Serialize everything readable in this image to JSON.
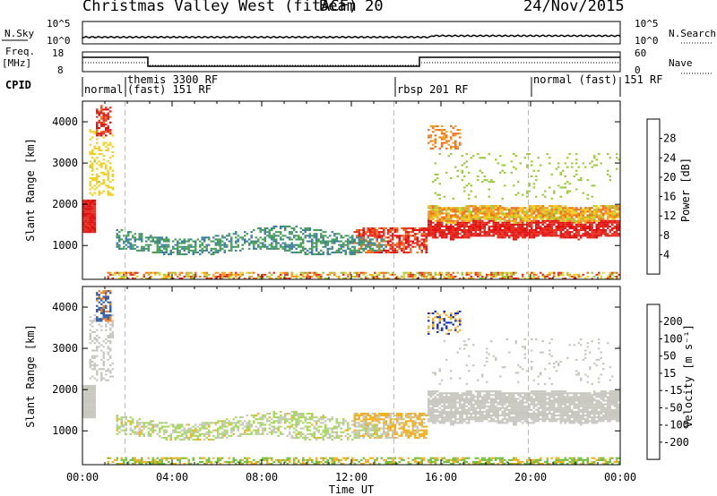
{
  "header": {
    "title": "Christmas Valley West (fitACF)",
    "beam": "Beam 20",
    "date": "24/Nov/2015"
  },
  "top_panel": {
    "left_label": "N.Sky",
    "right_label": "N.Search",
    "left_ticks": [
      "10^5",
      "10^0"
    ],
    "right_ticks": [
      "10^5",
      "10^0"
    ]
  },
  "freq_panel": {
    "left_label_line1": "Freq.",
    "left_label_line2": "[MHz]",
    "left_ticks": [
      "18",
      "8"
    ],
    "right_label": "Nave",
    "right_ticks": [
      "60",
      "0"
    ]
  },
  "cpid": {
    "label": "CPID",
    "segments": [
      "normal",
      "themis 3300 RF",
      "(fast) 151 RF",
      "rbsp 201 RF",
      "normal (fast) 151 RF"
    ]
  },
  "chart_data": [
    {
      "type": "heatmap",
      "name": "power",
      "ylabel": "Slant Range [km]",
      "yticks": [
        1000,
        2000,
        3000,
        4000
      ],
      "ylim": [
        180,
        4500
      ],
      "xlim_hours": [
        0,
        24
      ],
      "colorbar": {
        "label": "Power [dB]",
        "ticks": [
          "4",
          "8",
          "12",
          "16",
          "20",
          "24",
          "28"
        ],
        "colors": [
          "#1010e0",
          "#2a4fb0",
          "#3f7f9f",
          "#4aa05a",
          "#9ccc3a",
          "#f0d020",
          "#f4a020",
          "#f07020",
          "#e83020",
          "#e01010"
        ]
      }
    },
    {
      "type": "heatmap",
      "name": "velocity",
      "ylabel": "Slant Range [km]",
      "yticks": [
        1000,
        2000,
        3000,
        4000
      ],
      "ylim": [
        180,
        4500
      ],
      "xlim_hours": [
        0,
        24
      ],
      "colorbar": {
        "label": "Velocity [m s⁻¹]",
        "ticks": [
          "200",
          "100",
          "50",
          "15",
          "-15",
          "-50",
          "-100",
          "-200"
        ],
        "colors": [
          "#1830c0",
          "#2f60b0",
          "#3a8a3a",
          "#70c040",
          "#a8d860",
          "#c8c8c0",
          "#f2b020",
          "#f08020",
          "#f05020",
          "#e01010"
        ]
      }
    }
  ],
  "xaxis": {
    "ticks": [
      "00:00",
      "04:00",
      "08:00",
      "12:00",
      "16:00",
      "20:00",
      "00:00"
    ],
    "label": "Time UT"
  }
}
